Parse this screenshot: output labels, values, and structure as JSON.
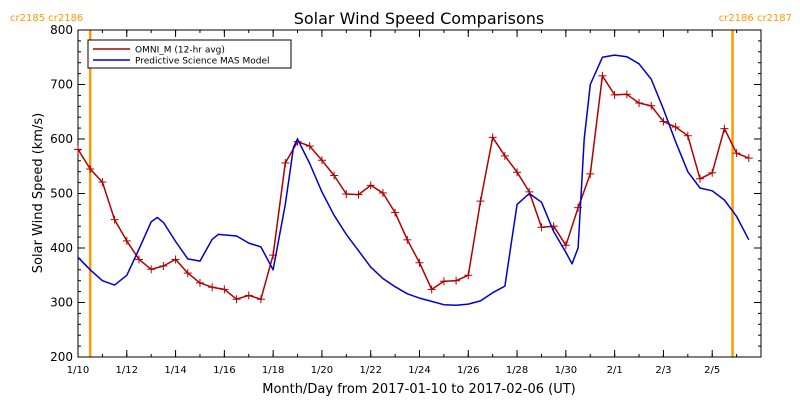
{
  "chart_data": {
    "type": "line",
    "title": "Solar Wind Speed Comparisons",
    "xlabel": "Month/Day from 2017-01-10 to 2017-02-06 (UT)",
    "ylabel": "Solar Wind Speed (km/s)",
    "xlim": [
      "2017-01-10",
      "2017-02-06"
    ],
    "ylim": [
      200,
      800
    ],
    "y_ticks": [
      200,
      300,
      400,
      500,
      600,
      700,
      800
    ],
    "x_ticks": [
      {
        "date": "2017-01-10",
        "label": "1/10"
      },
      {
        "date": "2017-01-12",
        "label": "1/12"
      },
      {
        "date": "2017-01-14",
        "label": "1/14"
      },
      {
        "date": "2017-01-16",
        "label": "1/16"
      },
      {
        "date": "2017-01-18",
        "label": "1/18"
      },
      {
        "date": "2017-01-20",
        "label": "1/20"
      },
      {
        "date": "2017-01-22",
        "label": "1/22"
      },
      {
        "date": "2017-01-24",
        "label": "1/24"
      },
      {
        "date": "2017-01-26",
        "label": "1/26"
      },
      {
        "date": "2017-01-28",
        "label": "1/28"
      },
      {
        "date": "2017-01-30",
        "label": "1/30"
      },
      {
        "date": "2017-02-01",
        "label": "2/1"
      },
      {
        "date": "2017-02-03",
        "label": "2/3"
      },
      {
        "date": "2017-02-05",
        "label": "2/5"
      }
    ],
    "legend_position": "top-left",
    "grid": false,
    "carrington_rotations": [
      {
        "date": "2017-01-10T12:00",
        "labels": [
          "cr2185",
          "cr2186"
        ],
        "color": "#FF9900"
      },
      {
        "date": "2017-02-05T20:00",
        "labels": [
          "cr2186",
          "cr2187"
        ],
        "color": "#FF9900"
      }
    ],
    "series": [
      {
        "name": "OMNI_M (12-hr avg)",
        "color": "#B00000",
        "marker": "+",
        "points": [
          [
            "2017-01-10T00:00",
            581
          ],
          [
            "2017-01-10T12:00",
            545
          ],
          [
            "2017-01-11T00:00",
            521
          ],
          [
            "2017-01-11T12:00",
            452
          ],
          [
            "2017-01-12T00:00",
            413
          ],
          [
            "2017-01-12T12:00",
            379
          ],
          [
            "2017-01-13T00:00",
            361
          ],
          [
            "2017-01-13T12:00",
            367
          ],
          [
            "2017-01-14T00:00",
            379
          ],
          [
            "2017-01-14T12:00",
            354
          ],
          [
            "2017-01-15T00:00",
            336
          ],
          [
            "2017-01-15T12:00",
            328
          ],
          [
            "2017-01-16T00:00",
            324
          ],
          [
            "2017-01-16T12:00",
            306
          ],
          [
            "2017-01-17T00:00",
            313
          ],
          [
            "2017-01-17T12:00",
            306
          ],
          [
            "2017-01-18T00:00",
            387
          ],
          [
            "2017-01-18T12:00",
            556
          ],
          [
            "2017-01-19T00:00",
            595
          ],
          [
            "2017-01-19T12:00",
            587
          ],
          [
            "2017-01-20T00:00",
            561
          ],
          [
            "2017-01-20T12:00",
            533
          ],
          [
            "2017-01-21T00:00",
            499
          ],
          [
            "2017-01-21T12:00",
            498
          ],
          [
            "2017-01-22T00:00",
            515
          ],
          [
            "2017-01-22T12:00",
            501
          ],
          [
            "2017-01-23T00:00",
            465
          ],
          [
            "2017-01-23T12:00",
            415
          ],
          [
            "2017-01-24T00:00",
            373
          ],
          [
            "2017-01-24T12:00",
            324
          ],
          [
            "2017-01-25T00:00",
            339
          ],
          [
            "2017-01-25T12:00",
            340
          ],
          [
            "2017-01-26T00:00",
            350
          ],
          [
            "2017-01-26T12:00",
            486
          ],
          [
            "2017-01-27T00:00",
            603
          ],
          [
            "2017-01-27T12:00",
            569
          ],
          [
            "2017-01-28T00:00",
            539
          ],
          [
            "2017-01-28T12:00",
            503
          ],
          [
            "2017-01-29T00:00",
            438
          ],
          [
            "2017-01-29T12:00",
            440
          ],
          [
            "2017-01-30T00:00",
            405
          ],
          [
            "2017-01-30T12:00",
            474
          ],
          [
            "2017-01-31T00:00",
            536
          ],
          [
            "2017-01-31T12:00",
            716
          ],
          [
            "2017-02-01T00:00",
            681
          ],
          [
            "2017-02-01T12:00",
            682
          ],
          [
            "2017-02-02T00:00",
            666
          ],
          [
            "2017-02-02T12:00",
            661
          ],
          [
            "2017-02-03T00:00",
            632
          ],
          [
            "2017-02-03T12:00",
            622
          ],
          [
            "2017-02-04T00:00",
            606
          ],
          [
            "2017-02-04T12:00",
            527
          ],
          [
            "2017-02-05T00:00",
            538
          ],
          [
            "2017-02-05T12:00",
            619
          ],
          [
            "2017-02-06T00:00",
            574
          ],
          [
            "2017-02-06T12:00",
            565
          ]
        ]
      },
      {
        "name": "Predictive Science MAS Model",
        "color": "#0000CC",
        "marker": "none",
        "points": [
          [
            "2017-01-10T00:00",
            383
          ],
          [
            "2017-01-10T12:00",
            360
          ],
          [
            "2017-01-11T00:00",
            340
          ],
          [
            "2017-01-11T12:00",
            332
          ],
          [
            "2017-01-12T00:00",
            350
          ],
          [
            "2017-01-12T12:00",
            398
          ],
          [
            "2017-01-13T00:00",
            448
          ],
          [
            "2017-01-13T06:00",
            456
          ],
          [
            "2017-01-13T12:00",
            447
          ],
          [
            "2017-01-14T00:00",
            412
          ],
          [
            "2017-01-14T12:00",
            380
          ],
          [
            "2017-01-15T00:00",
            376
          ],
          [
            "2017-01-15T12:00",
            416
          ],
          [
            "2017-01-15T18:00",
            425
          ],
          [
            "2017-01-16T12:00",
            422
          ],
          [
            "2017-01-17T00:00",
            409
          ],
          [
            "2017-01-17T12:00",
            402
          ],
          [
            "2017-01-18T00:00",
            360
          ],
          [
            "2017-01-18T12:00",
            480
          ],
          [
            "2017-01-18T20:00",
            585
          ],
          [
            "2017-01-19T00:00",
            600
          ],
          [
            "2017-01-19T12:00",
            555
          ],
          [
            "2017-01-20T00:00",
            503
          ],
          [
            "2017-01-20T12:00",
            460
          ],
          [
            "2017-01-21T00:00",
            425
          ],
          [
            "2017-01-21T12:00",
            395
          ],
          [
            "2017-01-22T00:00",
            365
          ],
          [
            "2017-01-22T12:00",
            344
          ],
          [
            "2017-01-23T00:00",
            329
          ],
          [
            "2017-01-23T12:00",
            316
          ],
          [
            "2017-01-24T00:00",
            308
          ],
          [
            "2017-01-24T12:00",
            302
          ],
          [
            "2017-01-25T00:00",
            296
          ],
          [
            "2017-01-25T12:00",
            295
          ],
          [
            "2017-01-26T00:00",
            297
          ],
          [
            "2017-01-26T12:00",
            303
          ],
          [
            "2017-01-27T00:00",
            318
          ],
          [
            "2017-01-27T12:00",
            330
          ],
          [
            "2017-01-27T20:00",
            430
          ],
          [
            "2017-01-28T00:00",
            480
          ],
          [
            "2017-01-28T12:00",
            500
          ],
          [
            "2017-01-29T00:00",
            484
          ],
          [
            "2017-01-29T12:00",
            430
          ],
          [
            "2017-01-30T00:00",
            392
          ],
          [
            "2017-01-30T06:00",
            371
          ],
          [
            "2017-01-30T12:00",
            400
          ],
          [
            "2017-01-30T18:00",
            600
          ],
          [
            "2017-01-31T00:00",
            700
          ],
          [
            "2017-01-31T12:00",
            750
          ],
          [
            "2017-02-01T00:00",
            754
          ],
          [
            "2017-02-01T12:00",
            751
          ],
          [
            "2017-02-02T00:00",
            738
          ],
          [
            "2017-02-02T12:00",
            710
          ],
          [
            "2017-02-03T00:00",
            655
          ],
          [
            "2017-02-03T12:00",
            595
          ],
          [
            "2017-02-04T00:00",
            540
          ],
          [
            "2017-02-04T12:00",
            510
          ],
          [
            "2017-02-05T00:00",
            505
          ],
          [
            "2017-02-05T12:00",
            488
          ],
          [
            "2017-02-06T00:00",
            458
          ],
          [
            "2017-02-06T12:00",
            415
          ]
        ]
      }
    ]
  }
}
